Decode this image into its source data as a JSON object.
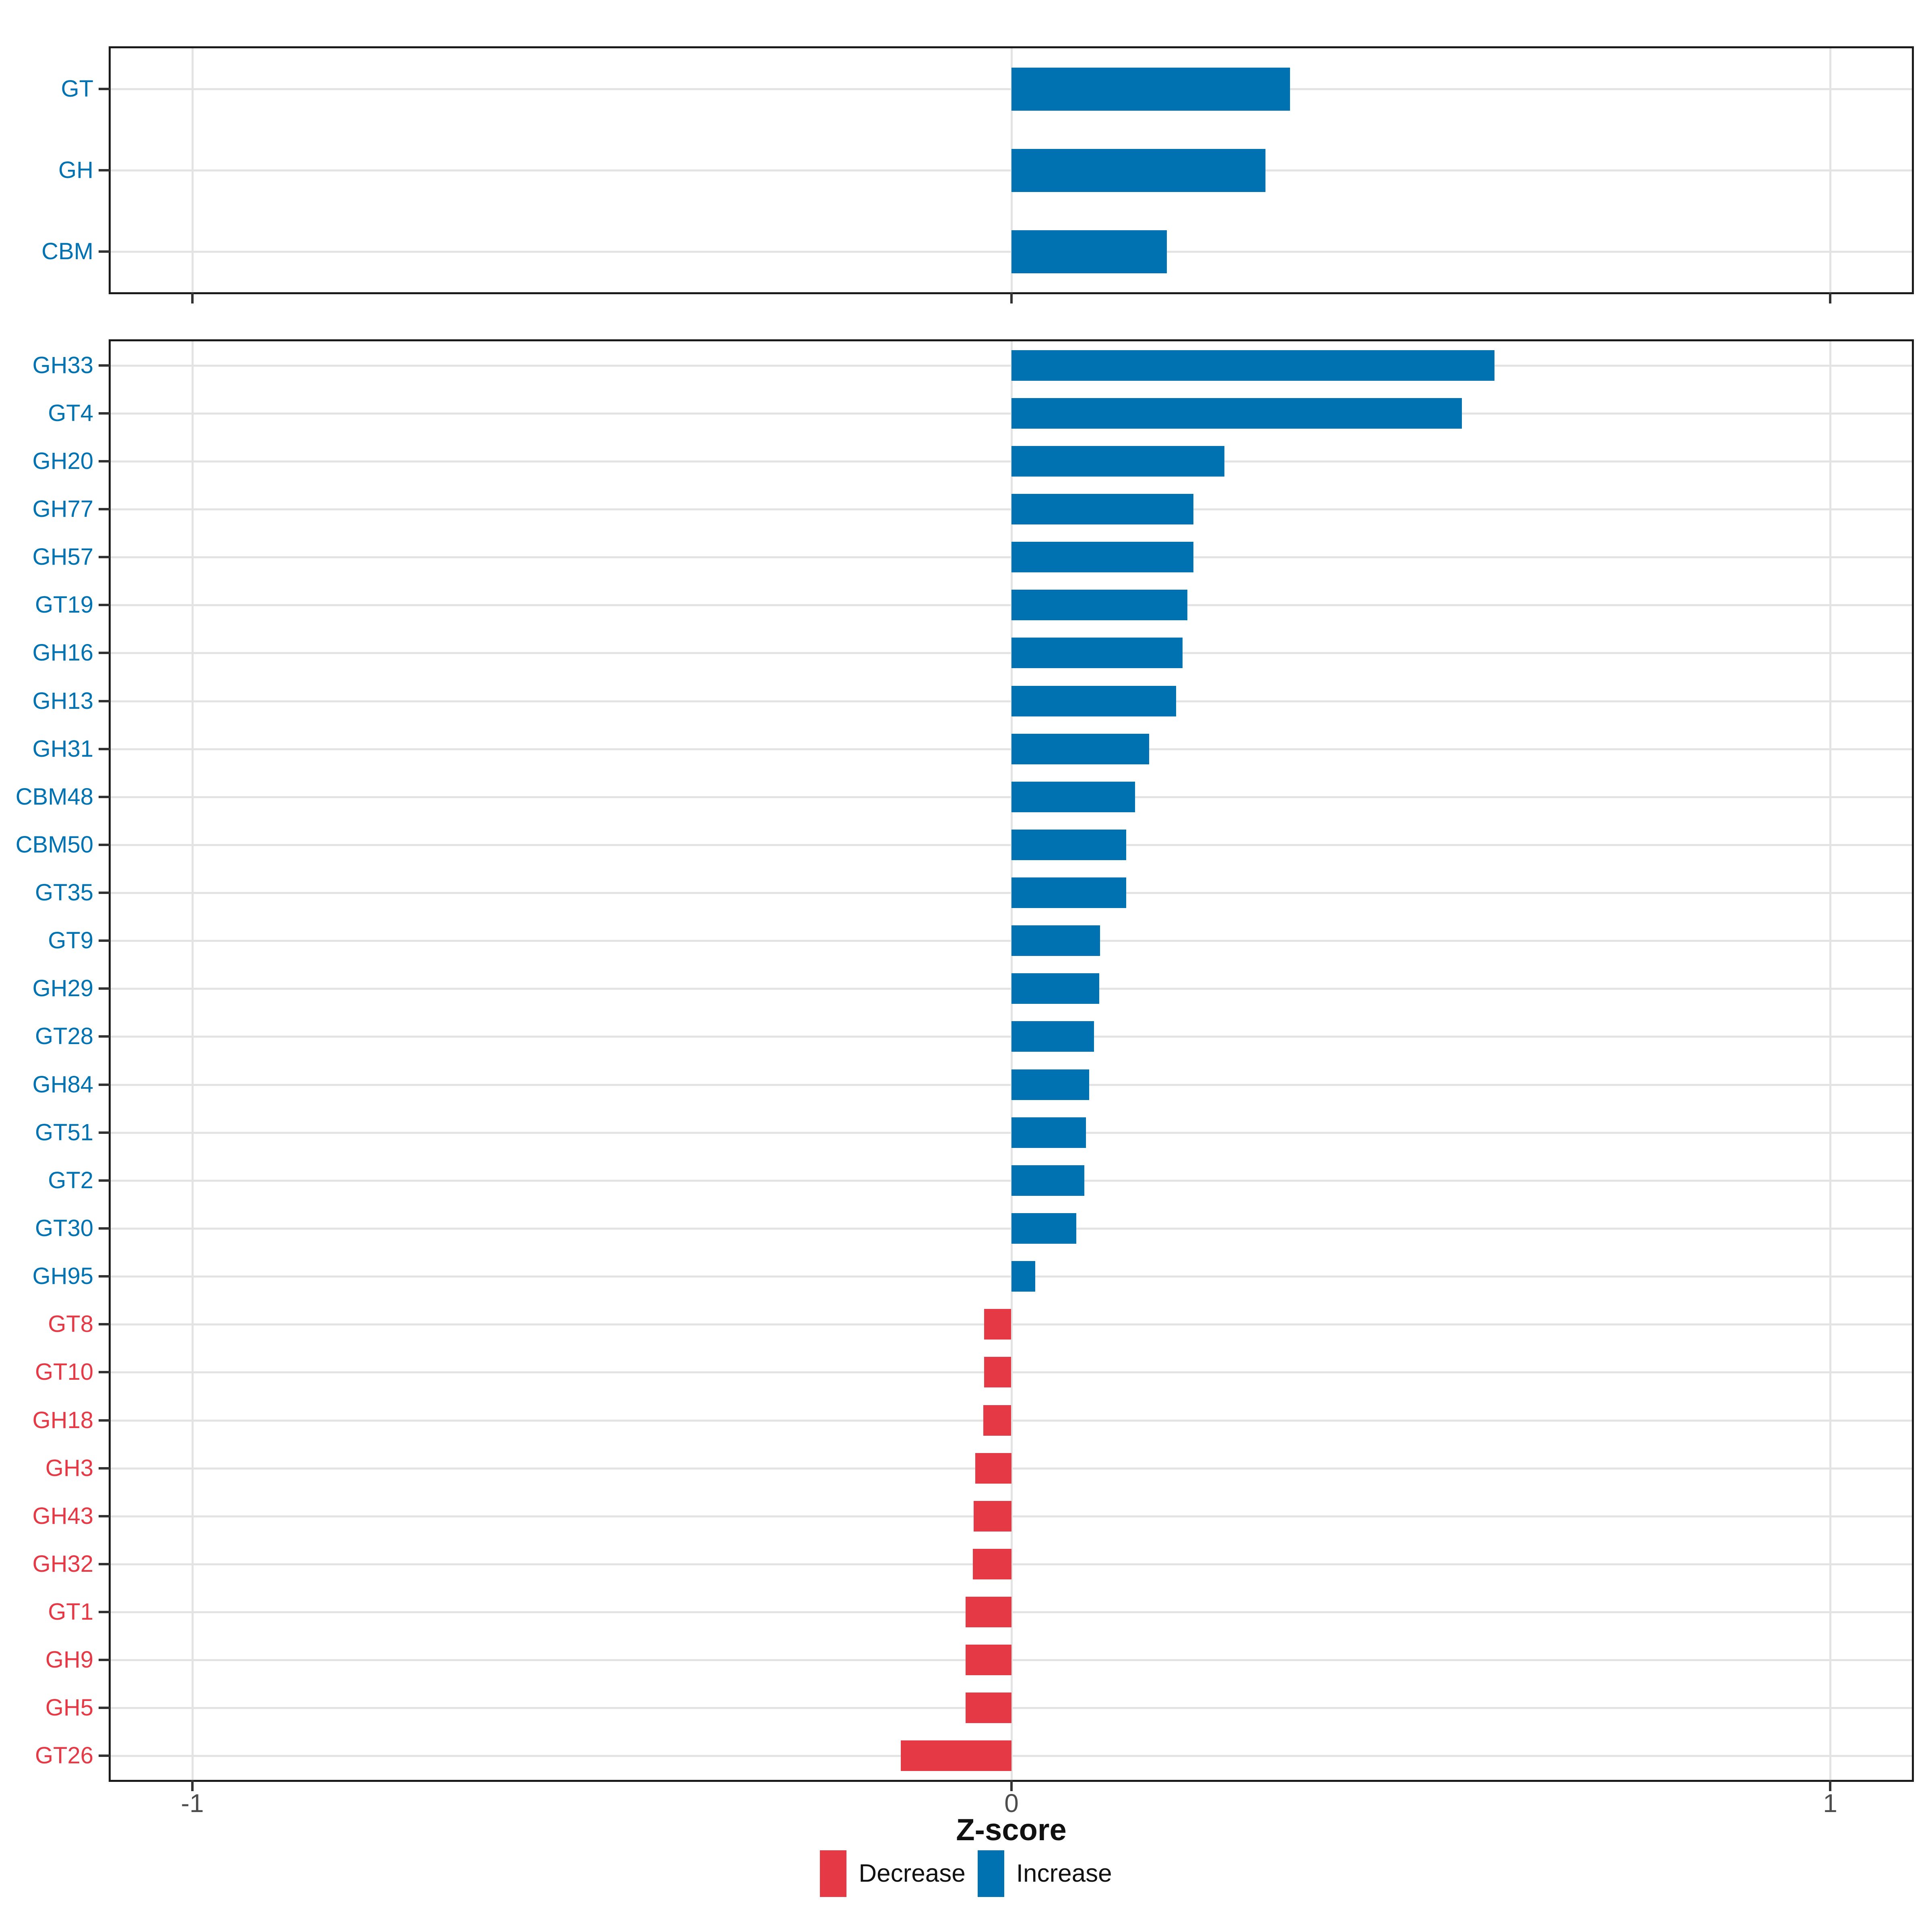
{
  "chart_data": {
    "type": "bar",
    "orientation": "horizontal",
    "xlabel": "Z-score",
    "xlim": [
      -1.1,
      1.1
    ],
    "x_ticks": [
      {
        "value": -1,
        "label": "-1"
      },
      {
        "value": 0,
        "label": "0"
      },
      {
        "value": 1,
        "label": "1"
      }
    ],
    "grid": "major gridlines only, light gray, white panel background, black panel border",
    "legend_position": "bottom-center",
    "colors": {
      "increase": "#0072B2",
      "decrease": "#E53946",
      "gridline": "#e3e3e3",
      "tick_label": "#4d4d4d",
      "panel_border": "#1b1b1b"
    },
    "legend": {
      "items": [
        {
          "key": "decrease",
          "label": "Decrease"
        },
        {
          "key": "increase",
          "label": "Increase"
        }
      ]
    },
    "panels": [
      {
        "name": "cazyme-classes",
        "rows": [
          {
            "category": "GT",
            "value": 0.34
          },
          {
            "category": "GH",
            "value": 0.31
          },
          {
            "category": "CBM",
            "value": 0.19
          }
        ]
      },
      {
        "name": "cazyme-families",
        "rows": [
          {
            "category": "GH33",
            "value": 0.59
          },
          {
            "category": "GT4",
            "value": 0.55
          },
          {
            "category": "GH20",
            "value": 0.26
          },
          {
            "category": "GH77",
            "value": 0.222
          },
          {
            "category": "GH57",
            "value": 0.222
          },
          {
            "category": "GT19",
            "value": 0.215
          },
          {
            "category": "GH16",
            "value": 0.209
          },
          {
            "category": "GH13",
            "value": 0.201
          },
          {
            "category": "GH31",
            "value": 0.168
          },
          {
            "category": "CBM48",
            "value": 0.151
          },
          {
            "category": "CBM50",
            "value": 0.14
          },
          {
            "category": "GT35",
            "value": 0.14
          },
          {
            "category": "GT9",
            "value": 0.108
          },
          {
            "category": "GH29",
            "value": 0.107
          },
          {
            "category": "GT28",
            "value": 0.101
          },
          {
            "category": "GH84",
            "value": 0.095
          },
          {
            "category": "GT51",
            "value": 0.091
          },
          {
            "category": "GT2",
            "value": 0.089
          },
          {
            "category": "GT30",
            "value": 0.079
          },
          {
            "category": "GH95",
            "value": 0.029
          },
          {
            "category": "GT8",
            "value": -0.033
          },
          {
            "category": "GT10",
            "value": -0.033
          },
          {
            "category": "GH18",
            "value": -0.034
          },
          {
            "category": "GH3",
            "value": -0.044
          },
          {
            "category": "GH43",
            "value": -0.046
          },
          {
            "category": "GH32",
            "value": -0.047
          },
          {
            "category": "GT1",
            "value": -0.056
          },
          {
            "category": "GH9",
            "value": -0.056
          },
          {
            "category": "GH5",
            "value": -0.056
          },
          {
            "category": "GT26",
            "value": -0.135
          }
        ]
      }
    ]
  }
}
